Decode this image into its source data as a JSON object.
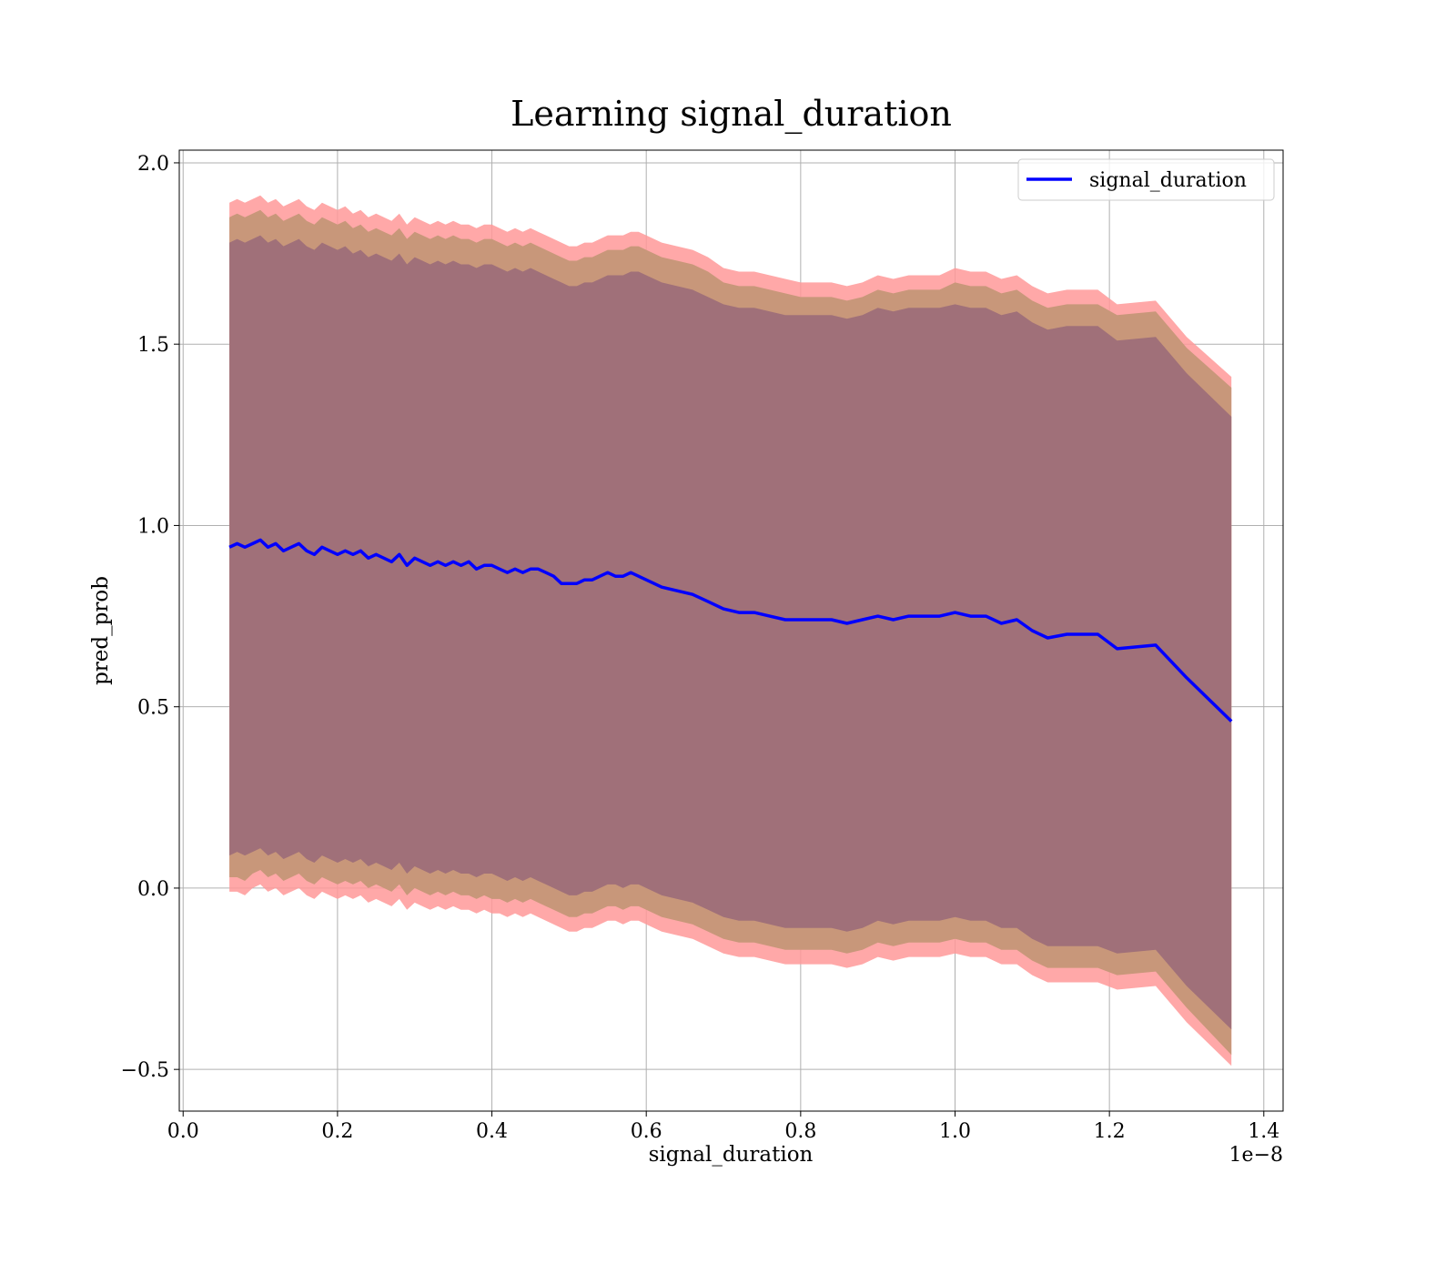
{
  "chart_data": {
    "type": "line",
    "title": "Learning signal_duration",
    "xlabel": "signal_duration",
    "ylabel": "pred_prob",
    "x_offset_label": "1e−8",
    "xlim": [
      -0.005,
      1.425
    ],
    "ylim": [
      -0.615,
      2.035
    ],
    "x_ticks": [
      0.0,
      0.2,
      0.4,
      0.6,
      0.8,
      1.0,
      1.2,
      1.4
    ],
    "x_tick_labels": [
      "0.0",
      "0.2",
      "0.4",
      "0.6",
      "0.8",
      "1.0",
      "1.2",
      "1.4"
    ],
    "y_ticks": [
      -0.5,
      0.0,
      0.5,
      1.0,
      1.5,
      2.0
    ],
    "y_tick_labels": [
      "−0.5",
      "0.0",
      "0.5",
      "1.0",
      "1.5",
      "2.0"
    ],
    "grid": true,
    "legend_position": "top-right",
    "series": [
      {
        "name": "signal_duration",
        "color": "#0000ff",
        "x": [
          0.06,
          0.07,
          0.08,
          0.09,
          0.1,
          0.11,
          0.12,
          0.13,
          0.14,
          0.15,
          0.16,
          0.17,
          0.18,
          0.19,
          0.2,
          0.21,
          0.22,
          0.23,
          0.24,
          0.25,
          0.26,
          0.27,
          0.28,
          0.29,
          0.3,
          0.31,
          0.32,
          0.33,
          0.34,
          0.35,
          0.36,
          0.37,
          0.38,
          0.39,
          0.4,
          0.41,
          0.42,
          0.43,
          0.44,
          0.45,
          0.46,
          0.47,
          0.48,
          0.49,
          0.5,
          0.51,
          0.52,
          0.53,
          0.54,
          0.55,
          0.56,
          0.57,
          0.58,
          0.59,
          0.6,
          0.62,
          0.64,
          0.66,
          0.68,
          0.7,
          0.72,
          0.74,
          0.76,
          0.78,
          0.8,
          0.82,
          0.84,
          0.86,
          0.88,
          0.9,
          0.92,
          0.94,
          0.96,
          0.98,
          1.0,
          1.02,
          1.04,
          1.06,
          1.08,
          1.1,
          1.12,
          1.145,
          1.185,
          1.21,
          1.26,
          1.3,
          1.358
        ],
        "mean": [
          0.94,
          0.95,
          0.94,
          0.95,
          0.96,
          0.94,
          0.95,
          0.93,
          0.94,
          0.95,
          0.93,
          0.92,
          0.94,
          0.93,
          0.92,
          0.93,
          0.92,
          0.93,
          0.91,
          0.92,
          0.91,
          0.9,
          0.92,
          0.89,
          0.91,
          0.9,
          0.89,
          0.9,
          0.89,
          0.9,
          0.89,
          0.9,
          0.88,
          0.89,
          0.89,
          0.88,
          0.87,
          0.88,
          0.87,
          0.88,
          0.88,
          0.87,
          0.86,
          0.84,
          0.84,
          0.84,
          0.85,
          0.85,
          0.86,
          0.87,
          0.86,
          0.86,
          0.87,
          0.86,
          0.85,
          0.83,
          0.82,
          0.81,
          0.79,
          0.77,
          0.76,
          0.76,
          0.75,
          0.74,
          0.74,
          0.74,
          0.74,
          0.73,
          0.74,
          0.75,
          0.74,
          0.75,
          0.75,
          0.75,
          0.76,
          0.75,
          0.75,
          0.73,
          0.74,
          0.71,
          0.69,
          0.7,
          0.7,
          0.66,
          0.67,
          0.58,
          0.46
        ],
        "outer_band_upper": [
          1.89,
          1.9,
          1.89,
          1.9,
          1.91,
          1.89,
          1.9,
          1.88,
          1.89,
          1.9,
          1.88,
          1.87,
          1.89,
          1.88,
          1.87,
          1.88,
          1.86,
          1.87,
          1.85,
          1.86,
          1.85,
          1.84,
          1.86,
          1.83,
          1.85,
          1.84,
          1.83,
          1.84,
          1.83,
          1.84,
          1.83,
          1.83,
          1.82,
          1.83,
          1.83,
          1.82,
          1.81,
          1.82,
          1.81,
          1.82,
          1.81,
          1.8,
          1.79,
          1.78,
          1.77,
          1.77,
          1.78,
          1.78,
          1.79,
          1.8,
          1.8,
          1.8,
          1.81,
          1.81,
          1.8,
          1.78,
          1.77,
          1.76,
          1.74,
          1.71,
          1.7,
          1.7,
          1.69,
          1.68,
          1.67,
          1.67,
          1.67,
          1.66,
          1.67,
          1.69,
          1.68,
          1.69,
          1.69,
          1.69,
          1.71,
          1.7,
          1.7,
          1.68,
          1.69,
          1.66,
          1.64,
          1.65,
          1.65,
          1.61,
          1.62,
          1.52,
          1.41
        ],
        "outer_band_lower": [
          -0.01,
          -0.01,
          -0.02,
          0.0,
          0.01,
          -0.01,
          0.0,
          -0.02,
          -0.01,
          0.0,
          -0.02,
          -0.03,
          -0.01,
          -0.02,
          -0.03,
          -0.02,
          -0.03,
          -0.02,
          -0.04,
          -0.03,
          -0.04,
          -0.05,
          -0.03,
          -0.06,
          -0.04,
          -0.05,
          -0.06,
          -0.05,
          -0.06,
          -0.05,
          -0.06,
          -0.06,
          -0.07,
          -0.06,
          -0.07,
          -0.07,
          -0.08,
          -0.07,
          -0.08,
          -0.07,
          -0.08,
          -0.09,
          -0.1,
          -0.11,
          -0.12,
          -0.12,
          -0.11,
          -0.11,
          -0.1,
          -0.09,
          -0.09,
          -0.1,
          -0.09,
          -0.09,
          -0.1,
          -0.12,
          -0.13,
          -0.14,
          -0.16,
          -0.18,
          -0.19,
          -0.19,
          -0.2,
          -0.21,
          -0.21,
          -0.21,
          -0.21,
          -0.22,
          -0.21,
          -0.19,
          -0.2,
          -0.19,
          -0.19,
          -0.19,
          -0.18,
          -0.19,
          -0.19,
          -0.21,
          -0.21,
          -0.24,
          -0.26,
          -0.26,
          -0.26,
          -0.28,
          -0.27,
          -0.37,
          -0.49
        ],
        "inner_band_upper": [
          1.85,
          1.86,
          1.85,
          1.86,
          1.87,
          1.85,
          1.86,
          1.84,
          1.85,
          1.86,
          1.84,
          1.83,
          1.85,
          1.84,
          1.83,
          1.84,
          1.82,
          1.83,
          1.81,
          1.82,
          1.81,
          1.8,
          1.82,
          1.79,
          1.81,
          1.8,
          1.79,
          1.8,
          1.79,
          1.8,
          1.79,
          1.79,
          1.78,
          1.79,
          1.79,
          1.78,
          1.77,
          1.78,
          1.77,
          1.78,
          1.77,
          1.76,
          1.75,
          1.74,
          1.73,
          1.73,
          1.74,
          1.74,
          1.75,
          1.76,
          1.76,
          1.76,
          1.77,
          1.77,
          1.76,
          1.74,
          1.73,
          1.72,
          1.7,
          1.67,
          1.66,
          1.66,
          1.65,
          1.64,
          1.63,
          1.63,
          1.63,
          1.62,
          1.63,
          1.65,
          1.64,
          1.65,
          1.65,
          1.65,
          1.67,
          1.66,
          1.66,
          1.64,
          1.65,
          1.62,
          1.6,
          1.61,
          1.61,
          1.58,
          1.59,
          1.49,
          1.38
        ],
        "inner_band_lower": [
          0.03,
          0.03,
          0.02,
          0.04,
          0.05,
          0.03,
          0.04,
          0.02,
          0.03,
          0.04,
          0.02,
          0.01,
          0.03,
          0.02,
          0.01,
          0.02,
          0.01,
          0.02,
          0.0,
          0.01,
          0.0,
          -0.01,
          0.01,
          -0.02,
          0.0,
          -0.01,
          -0.02,
          -0.01,
          -0.02,
          -0.01,
          -0.02,
          -0.02,
          -0.03,
          -0.02,
          -0.03,
          -0.03,
          -0.04,
          -0.03,
          -0.04,
          -0.03,
          -0.04,
          -0.05,
          -0.06,
          -0.07,
          -0.08,
          -0.08,
          -0.07,
          -0.07,
          -0.06,
          -0.05,
          -0.05,
          -0.06,
          -0.05,
          -0.05,
          -0.06,
          -0.08,
          -0.09,
          -0.1,
          -0.12,
          -0.14,
          -0.15,
          -0.15,
          -0.16,
          -0.17,
          -0.17,
          -0.17,
          -0.17,
          -0.18,
          -0.17,
          -0.15,
          -0.16,
          -0.15,
          -0.15,
          -0.15,
          -0.14,
          -0.15,
          -0.15,
          -0.17,
          -0.17,
          -0.2,
          -0.22,
          -0.22,
          -0.22,
          -0.24,
          -0.23,
          -0.33,
          -0.46
        ],
        "core_band_upper": [
          1.78,
          1.79,
          1.78,
          1.79,
          1.8,
          1.78,
          1.79,
          1.77,
          1.78,
          1.79,
          1.77,
          1.76,
          1.78,
          1.77,
          1.76,
          1.77,
          1.75,
          1.76,
          1.74,
          1.75,
          1.74,
          1.73,
          1.75,
          1.72,
          1.74,
          1.73,
          1.72,
          1.73,
          1.72,
          1.73,
          1.72,
          1.72,
          1.71,
          1.72,
          1.72,
          1.71,
          1.7,
          1.71,
          1.7,
          1.71,
          1.7,
          1.69,
          1.68,
          1.67,
          1.66,
          1.66,
          1.67,
          1.67,
          1.68,
          1.69,
          1.69,
          1.69,
          1.7,
          1.7,
          1.69,
          1.67,
          1.66,
          1.65,
          1.63,
          1.61,
          1.6,
          1.6,
          1.59,
          1.58,
          1.58,
          1.58,
          1.58,
          1.57,
          1.58,
          1.6,
          1.59,
          1.6,
          1.6,
          1.6,
          1.61,
          1.6,
          1.6,
          1.58,
          1.59,
          1.56,
          1.54,
          1.55,
          1.55,
          1.51,
          1.52,
          1.42,
          1.3
        ],
        "core_band_lower": [
          0.09,
          0.1,
          0.09,
          0.1,
          0.11,
          0.09,
          0.1,
          0.08,
          0.09,
          0.1,
          0.08,
          0.07,
          0.09,
          0.08,
          0.07,
          0.08,
          0.07,
          0.08,
          0.06,
          0.07,
          0.06,
          0.05,
          0.07,
          0.04,
          0.06,
          0.05,
          0.04,
          0.05,
          0.04,
          0.05,
          0.04,
          0.04,
          0.03,
          0.04,
          0.04,
          0.03,
          0.02,
          0.03,
          0.02,
          0.03,
          0.02,
          0.01,
          0.0,
          -0.01,
          -0.02,
          -0.02,
          -0.01,
          -0.01,
          0.0,
          0.01,
          0.01,
          0.0,
          0.01,
          0.01,
          0.0,
          -0.02,
          -0.03,
          -0.04,
          -0.06,
          -0.08,
          -0.09,
          -0.09,
          -0.1,
          -0.11,
          -0.11,
          -0.11,
          -0.11,
          -0.12,
          -0.11,
          -0.09,
          -0.1,
          -0.09,
          -0.09,
          -0.09,
          -0.08,
          -0.09,
          -0.09,
          -0.11,
          -0.11,
          -0.14,
          -0.16,
          -0.16,
          -0.16,
          -0.18,
          -0.17,
          -0.27,
          -0.39
        ]
      }
    ],
    "band_colors": {
      "outer": "#ff9999",
      "inner": "#c8977a",
      "core": "#a07079"
    }
  }
}
